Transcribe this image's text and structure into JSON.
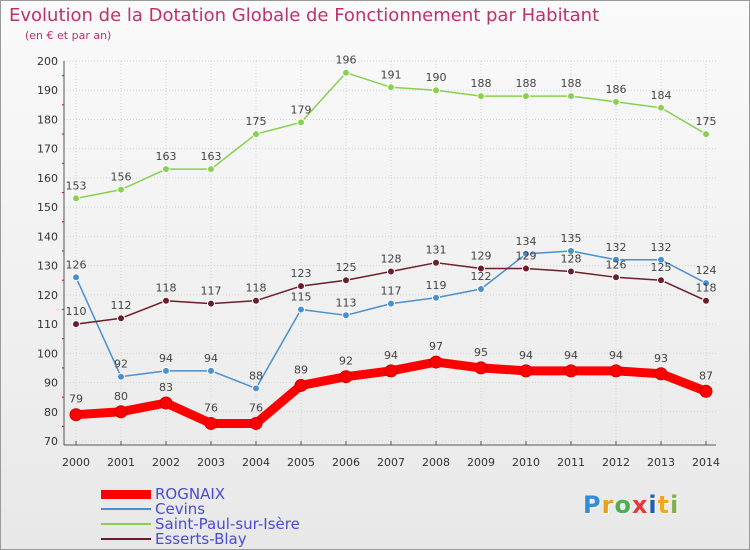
{
  "header": {
    "title": "Evolution de la Dotation Globale de Fonctionnement par Habitant",
    "subtitle": "(en € et par an)"
  },
  "chart_data": {
    "type": "line",
    "title": "Evolution de la Dotation Globale de Fonctionnement par Habitant",
    "subtitle": "(en € et par an)",
    "xlabel": "",
    "ylabel": "",
    "x": [
      "2000",
      "2001",
      "2002",
      "2003",
      "2004",
      "2005",
      "2006",
      "2007",
      "2008",
      "2009",
      "2010",
      "2011",
      "2012",
      "2013",
      "2014"
    ],
    "ylim": [
      70,
      200
    ],
    "yticks": [
      70,
      80,
      90,
      100,
      110,
      120,
      130,
      140,
      150,
      160,
      170,
      180,
      190,
      200
    ],
    "grid": true,
    "legend_position": "bottom-left",
    "series": [
      {
        "name": "ROGNAIX",
        "color": "#ff0000",
        "values": [
          79,
          80,
          83,
          76,
          76,
          89,
          92,
          94,
          97,
          95,
          94,
          94,
          94,
          93,
          87
        ]
      },
      {
        "name": "Cevins",
        "color": "#4a8fcf",
        "values": [
          126,
          92,
          94,
          94,
          88,
          115,
          113,
          117,
          119,
          122,
          134,
          135,
          132,
          132,
          124
        ]
      },
      {
        "name": "Saint-Paul-sur-Isère",
        "color": "#88d050",
        "values": [
          153,
          156,
          163,
          163,
          175,
          179,
          196,
          191,
          190,
          188,
          188,
          188,
          186,
          184,
          175
        ]
      },
      {
        "name": "Esserts-Blay",
        "color": "#6a1e2a",
        "values": [
          110,
          112,
          118,
          117,
          118,
          123,
          125,
          128,
          131,
          129,
          129,
          128,
          126,
          125,
          118
        ]
      }
    ]
  },
  "legend": {
    "items": [
      "ROGNAIX",
      "Cevins",
      "Saint-Paul-sur-Isère",
      "Esserts-Blay"
    ]
  },
  "logo": {
    "letters": [
      "P",
      "r",
      "o",
      "x",
      "i",
      "t",
      "i"
    ],
    "colors": [
      "#2e8fd8",
      "#e8a020",
      "#4caf50",
      "#e53935",
      "#1e5fb5",
      "#f2a81d",
      "#7cb342"
    ]
  }
}
